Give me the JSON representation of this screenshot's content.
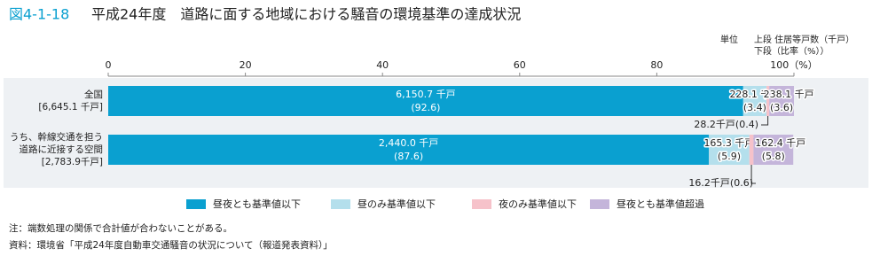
{
  "chart_data": {
    "type": "stacked_bar_horizontal",
    "figure_number": "図4-1-18",
    "title": "平成24年度　道路に面する地域における騒音の環境基準の達成状況",
    "unit_label": "単位",
    "unit_upper": "上段 住居等戸数（千戸）",
    "unit_lower": "下段（比率（%））",
    "categories": [
      "全国",
      "うち、幹線交通を担う道路に近接する空間"
    ],
    "category_totals": [
      "[6,645.1 千戸]",
      "[2,783.9千戸]"
    ],
    "xlim": [
      0,
      100
    ],
    "xticks": [
      0,
      20,
      40,
      60,
      80,
      {
        "value": 100,
        "label": "100（%）"
      }
    ],
    "series": [
      {
        "name": "昼夜とも基準値以下",
        "color": "#0aa0d0",
        "values": [
          92.6,
          87.6
        ],
        "count_labels": [
          "6,150.7 千戸",
          "2,440.0 千戸"
        ],
        "value_labels": [
          "(92.6)",
          "(87.6)"
        ]
      },
      {
        "name": "昼のみ基準値以下",
        "color": "#b4dfec",
        "values": [
          3.4,
          5.9
        ],
        "count_labels": [
          "228.1 千戸",
          "165.3 千戸"
        ],
        "value_labels": [
          "(3.4)",
          "(5.9)"
        ]
      },
      {
        "name": "夜のみ基準値以下",
        "color": "#f6c2ca",
        "values": [
          0.4,
          0.6
        ],
        "count_labels": [
          "28.2千戸",
          "16.2千戸"
        ],
        "value_labels": [
          "(0.4)",
          "(0.6)"
        ]
      },
      {
        "name": "昼夜とも基準値超過",
        "color": "#c4b5da",
        "values": [
          3.6,
          5.8
        ],
        "count_labels": [
          "238.1 千戸",
          "162.4 千戸"
        ],
        "value_labels": [
          "(3.6)",
          "(5.8)"
        ]
      }
    ],
    "notes": [
      "注：端数処理の関係で合計値が合わないことがある。",
      "資料：環境省「平成24年度自動車交通騒音の状況について（報道発表資料）」"
    ]
  }
}
